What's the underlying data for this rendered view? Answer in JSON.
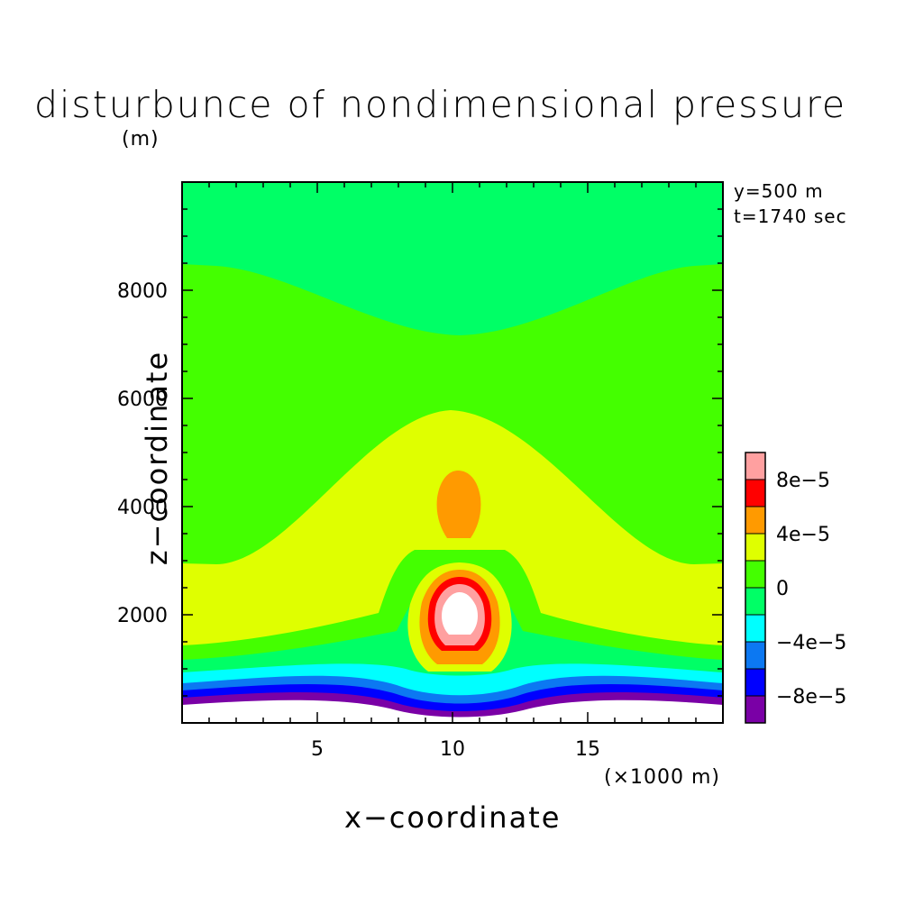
{
  "chart_data": {
    "type": "contour",
    "title": "disturbunce of nondimensional pressure",
    "xlabel": "x−coordinate",
    "ylabel": "z−coordinate",
    "x_unit": "(×1000 m)",
    "y_unit": "(m)",
    "annotations": [
      "y=500 m",
      "t=1740 sec"
    ],
    "xlim": [
      0,
      20
    ],
    "ylim": [
      0,
      10000
    ],
    "xticks": [
      {
        "value": 5,
        "label": "5"
      },
      {
        "value": 10,
        "label": "10"
      },
      {
        "value": 15,
        "label": "15"
      }
    ],
    "yticks": [
      {
        "value": 2000,
        "label": "2000"
      },
      {
        "value": 4000,
        "label": "4000"
      },
      {
        "value": 6000,
        "label": "6000"
      },
      {
        "value": 8000,
        "label": "8000"
      }
    ],
    "colorbar": {
      "levels": [
        -0.0001,
        -8e-05,
        -6e-05,
        -4e-05,
        -2e-05,
        0,
        2e-05,
        4e-05,
        6e-05,
        8e-05,
        0.0001
      ],
      "colors": [
        "#7a00a6",
        "#0000ff",
        "#0c78f2",
        "#00ffff",
        "#00ff66",
        "#44ff00",
        "#dfff00",
        "#ff9a00",
        "#ff0000",
        "#ffa0a0"
      ],
      "labels": [
        {
          "value": -8e-05,
          "label": "−8e−5"
        },
        {
          "value": -4e-05,
          "label": "−4e−5"
        },
        {
          "value": 0,
          "label": "0"
        },
        {
          "value": 4e-05,
          "label": "4e−5"
        },
        {
          "value": 8e-05,
          "label": "8e−5"
        }
      ]
    }
  }
}
